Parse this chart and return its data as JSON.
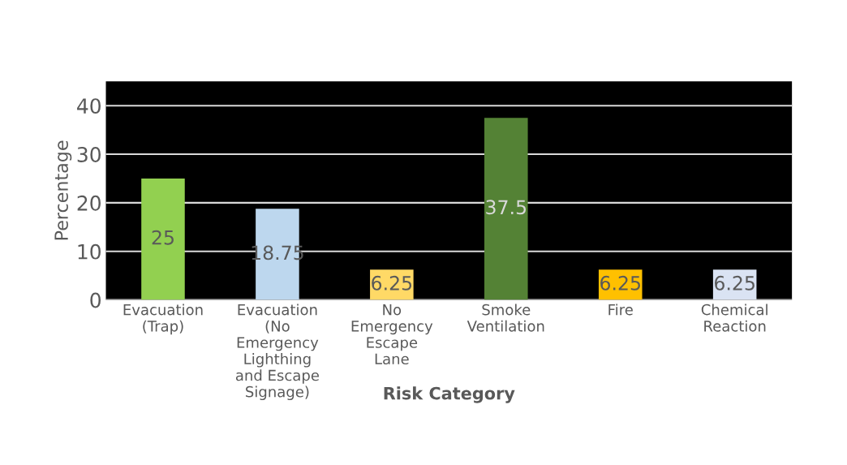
{
  "chart_data": {
    "type": "bar",
    "xlabel": "Risk Category",
    "ylabel": "Percentage",
    "categories": [
      "Evacuation\n(Trap)",
      "Evacuation\n(No\nEmergency\nLighthing\nand Escape\nSignage)",
      "No\nEmergency\nEscape\nLane",
      "Smoke\nVentilation",
      "Fire",
      "Chemical\nReaction"
    ],
    "values": [
      25,
      18.75,
      6.25,
      37.5,
      6.25,
      6.25
    ],
    "colors": [
      "#92d050",
      "#bdd7ee",
      "#ffd966",
      "#548235",
      "#ffc000",
      "#dae3f3"
    ],
    "ylim": [
      0,
      45
    ],
    "yticks": [
      0,
      10,
      20,
      30,
      40
    ],
    "grid": "y",
    "data_labels": true,
    "legend": false
  }
}
